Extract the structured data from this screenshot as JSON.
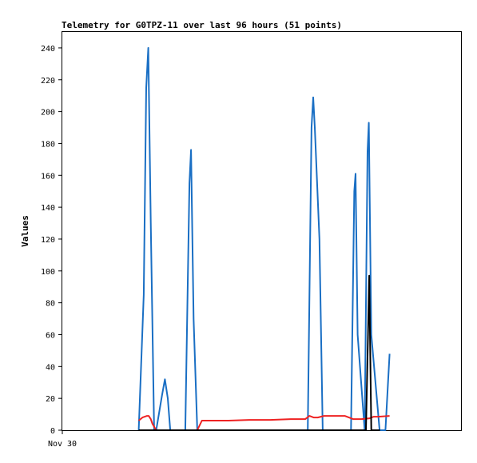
{
  "chart_data": {
    "type": "line",
    "title": "Telemetry for G0TPZ-11 over last 96 hours (51 points)",
    "xlabel": "",
    "ylabel": "Values",
    "ylim": [
      0,
      250
    ],
    "xlim": [
      0,
      96
    ],
    "yticks": [
      0,
      20,
      40,
      60,
      80,
      100,
      120,
      140,
      160,
      180,
      200,
      220,
      240
    ],
    "xticks": [
      {
        "x": 0,
        "label": "Nov 30"
      }
    ],
    "grid": false,
    "legend": "none",
    "series": [
      {
        "color": "#1a6fc4",
        "x": [
          18.4,
          19.6,
          20.2,
          20.7,
          21.3,
          22.1,
          22.6,
          24.0,
          24.7,
          25.4,
          26.0,
          29.6,
          30.6,
          31.0,
          31.6,
          32.5,
          59.1,
          60.0,
          60.4,
          60.8,
          61.9,
          62.7,
          69.5,
          70.3,
          70.6,
          71.1,
          72.8,
          73.5,
          73.8,
          74.4,
          76.4,
          77.8,
          78.8
        ],
        "y": [
          0,
          85,
          215,
          240,
          130,
          0,
          0,
          22,
          32,
          20,
          0,
          0,
          155,
          176,
          70,
          0,
          0,
          190,
          209,
          190,
          120,
          0,
          0,
          150,
          161,
          60,
          0,
          175,
          193,
          60,
          0,
          0,
          48
        ]
      },
      {
        "color": "#ee2222",
        "x": [
          18.4,
          19.3,
          20.4,
          20.8,
          21.3,
          21.7,
          22.6,
          32.5,
          33.6,
          35.0,
          40.0,
          45.0,
          50.0,
          55.0,
          57.5,
          58.5,
          59.5,
          60.5,
          61.5,
          63.0,
          65.0,
          68.0,
          70.0,
          72.0,
          74.0,
          75.0,
          76.0,
          78.8
        ],
        "y": [
          6,
          8,
          9,
          9,
          7,
          4,
          0,
          0,
          6,
          6,
          6,
          6.5,
          6.5,
          7,
          7,
          7,
          9,
          8,
          8,
          9,
          9,
          9,
          7,
          7,
          7.5,
          8.5,
          8.5,
          9
        ]
      },
      {
        "color": "#000000",
        "x": [
          18.4,
          72.8,
          73.1,
          73.6,
          73.9,
          74.4,
          74.8,
          76.5
        ],
        "y": [
          0,
          0,
          0,
          60,
          97,
          0,
          0,
          0
        ]
      }
    ]
  }
}
